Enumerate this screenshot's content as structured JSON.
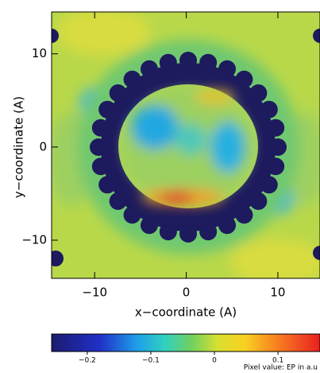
{
  "chart_data": {
    "type": "heatmap",
    "x_label": "x−coordinate (A)",
    "y_label": "y−coordinate (A)",
    "xlim": [
      -14.7,
      14.6
    ],
    "ylim": [
      -14.1,
      14.5
    ],
    "xticks": [
      {
        "value": -10,
        "label": "−10"
      },
      0,
      10
    ],
    "yticks": [
      {
        "value": -10,
        "label": "−10"
      },
      0,
      10
    ],
    "colorbar": {
      "label": "Pixel value: EP in a.u",
      "lim": [
        -0.256,
        0.166
      ],
      "ticks": [
        {
          "value": -0.2,
          "label": "−0.2"
        },
        {
          "value": -0.1,
          "label": "−0.1"
        },
        0,
        0.1
      ]
    }
  }
}
